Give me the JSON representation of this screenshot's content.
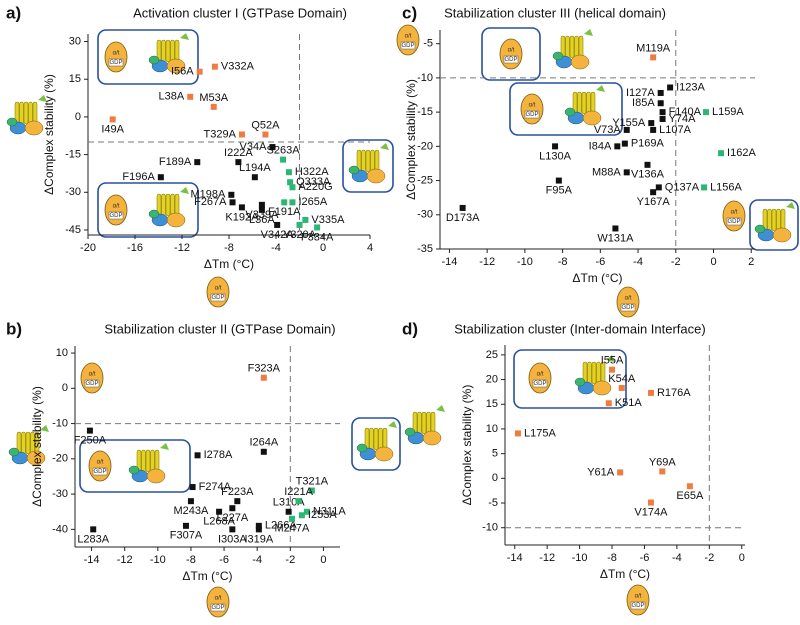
{
  "icons": {
    "subunit": "α/t",
    "nucleotide": "GDP"
  },
  "chart_data": [
    {
      "type": "scatter",
      "panel": "a)",
      "title": "Activation cluster I (GTPase Domain)",
      "xlabel": "ΔTm (°C)",
      "ylabel": "ΔComplex stability (%)",
      "xlim": [
        -20,
        4
      ],
      "ylim": [
        -47,
        33
      ],
      "xticks": [
        -20,
        -16,
        -12,
        -8,
        -4,
        0,
        4
      ],
      "yticks": [
        30,
        15,
        0,
        -15,
        -30,
        -45
      ],
      "ref_lines": {
        "x": -2,
        "y": -10
      },
      "series": [
        {
          "color": "#f07b3f",
          "labels": [
            "I56A",
            "V332A",
            "L38A",
            "M53A",
            "I49A",
            "T329A",
            "Q52A"
          ],
          "x": [
            -10.5,
            -9.2,
            -11.3,
            -9.3,
            -17.9,
            -6.9,
            -4.9
          ],
          "values": [
            18,
            20,
            8,
            4,
            -1,
            -7,
            -7
          ]
        },
        {
          "color": "#111111",
          "labels": [
            "V34A",
            "F189A",
            "I222A",
            "F196A",
            "L194A",
            "M198A",
            "F267A",
            "K192A",
            "V339A",
            "L36A",
            "V342A"
          ],
          "x": [
            -4.3,
            -10.7,
            -7.2,
            -13.8,
            -5.8,
            -7.8,
            -7.7,
            -6.9,
            -5.2,
            -5.2,
            -3.9
          ],
          "values": [
            -12,
            -18,
            -18,
            -24,
            -24,
            -31,
            -34,
            -36,
            -35,
            -37,
            -43
          ]
        },
        {
          "color": "#2bb673",
          "labels": [
            "S263A",
            "H322A",
            "Q333A",
            "A220G",
            "I265A",
            "F191A",
            "V335A",
            "Y320A",
            "F334A"
          ],
          "x": [
            -3.4,
            -2.9,
            -2.8,
            -2.6,
            -2.6,
            -3.3,
            -1.5,
            -2.0,
            -0.5
          ],
          "values": [
            -17,
            -22,
            -26,
            -28,
            -34,
            -34,
            -41,
            -43,
            -44
          ]
        }
      ]
    },
    {
      "type": "scatter",
      "panel": "b)",
      "title": "Stabilization cluster II (GTPase Domain)",
      "xlabel": "ΔTm (°C)",
      "ylabel": "ΔComplex stability (%)",
      "xlim": [
        -15,
        1
      ],
      "ylim": [
        -45,
        12
      ],
      "xticks": [
        -14,
        -12,
        -10,
        -8,
        -6,
        -4,
        -2,
        0
      ],
      "yticks": [
        10,
        0,
        -10,
        -20,
        -30,
        -40
      ],
      "ref_lines": {
        "x": -2,
        "y": -10
      },
      "series": [
        {
          "color": "#f07b3f",
          "labels": [
            "F323A"
          ],
          "x": [
            -3.6
          ],
          "values": [
            3
          ]
        },
        {
          "color": "#111111",
          "labels": [
            "F250A",
            "I278A",
            "I264A",
            "F274A",
            "M243A",
            "F223A",
            "L227A",
            "L268A",
            "F307A",
            "I303A",
            "I319A",
            "L266A",
            "L310A",
            "L283A"
          ],
          "x": [
            -14.1,
            -7.6,
            -3.6,
            -7.9,
            -8,
            -5.2,
            -5.5,
            -6.3,
            -8.3,
            -5.5,
            -3.9,
            -3.9,
            -2.1,
            -13.9
          ],
          "values": [
            -12,
            -19,
            -18,
            -28,
            -32,
            -32,
            -34,
            -35,
            -39,
            -40,
            -40,
            -39,
            -35,
            -40
          ]
        },
        {
          "color": "#2bb673",
          "labels": [
            "T321A",
            "I221A",
            "N311A",
            "I253A",
            "M247A"
          ],
          "x": [
            -0.7,
            -1.5,
            -1,
            -1.3,
            -1.9
          ],
          "values": [
            -29,
            -32,
            -35,
            -36,
            -37
          ]
        }
      ]
    },
    {
      "type": "scatter",
      "panel": "c)",
      "title": "Stabilization cluster III (helical domain)",
      "xlabel": "ΔTm (°C)",
      "ylabel": "ΔComplex stability (%)",
      "xlim": [
        -14.5,
        2.2
      ],
      "ylim": [
        -35,
        -3
      ],
      "xticks": [
        -14,
        -12,
        -10,
        -8,
        -6,
        -4,
        -2,
        0,
        2
      ],
      "yticks": [
        -5,
        -10,
        -15,
        -20,
        -25,
        -30,
        -35
      ],
      "ref_lines": {
        "x": -2,
        "y": -10
      },
      "series": [
        {
          "color": "#f07b3f",
          "labels": [
            "M119A"
          ],
          "x": [
            -3.2
          ],
          "values": [
            -7
          ]
        },
        {
          "color": "#111111",
          "labels": [
            "I123A",
            "I127A",
            "I85A",
            "F140A",
            "Y74A",
            "Y155A",
            "L107A",
            "V73A",
            "P169A",
            "I84A",
            "L130A",
            "V136A",
            "M88A",
            "Q137A",
            "F95A",
            "Y167A",
            "D173A",
            "W131A"
          ],
          "x": [
            -2.3,
            -2.8,
            -2.8,
            -2.7,
            -2.7,
            -3.3,
            -3.2,
            -4.6,
            -4.7,
            -5.1,
            -8.4,
            -3.5,
            -4.6,
            -2.9,
            -8.2,
            -3.2,
            -13.3,
            -5.2
          ],
          "values": [
            -11.4,
            -12.2,
            -13.7,
            -15,
            -16,
            -16.6,
            -17.6,
            -17.6,
            -19.6,
            -20,
            -20,
            -22.7,
            -23.8,
            -26,
            -25,
            -26.7,
            -29,
            -32
          ]
        },
        {
          "color": "#2bb673",
          "labels": [
            "L159A",
            "I162A",
            "L156A"
          ],
          "x": [
            -0.4,
            0.4,
            -0.5
          ],
          "values": [
            -15,
            -21,
            -26
          ]
        }
      ]
    },
    {
      "type": "scatter",
      "panel": "d)",
      "title": "Stabilization cluster (Inter-domain Interface)",
      "xlabel": "ΔTm (°C)",
      "ylabel": "ΔComplex stability (%)",
      "xlim": [
        -14.6,
        0.2
      ],
      "ylim": [
        -13.5,
        27
      ],
      "xticks": [
        -14,
        -12,
        -10,
        -8,
        -6,
        -4,
        -2,
        0
      ],
      "yticks": [
        25,
        20,
        15,
        10,
        5,
        0,
        -5,
        -10
      ],
      "ref_lines": {
        "x": -2,
        "y": -10
      },
      "series": [
        {
          "color": "#f07b3f",
          "labels": [
            "I55A",
            "K54A",
            "R176A",
            "K51A",
            "L175A",
            "Y61A",
            "Y69A",
            "E65A",
            "V174A"
          ],
          "x": [
            -8,
            -7.4,
            -5.6,
            -8.2,
            -13.8,
            -7.5,
            -4.9,
            -3.2,
            -5.6
          ],
          "values": [
            22,
            18.3,
            17.3,
            15.2,
            9.1,
            1.2,
            1.4,
            -1.6,
            -4.9
          ]
        }
      ]
    }
  ]
}
